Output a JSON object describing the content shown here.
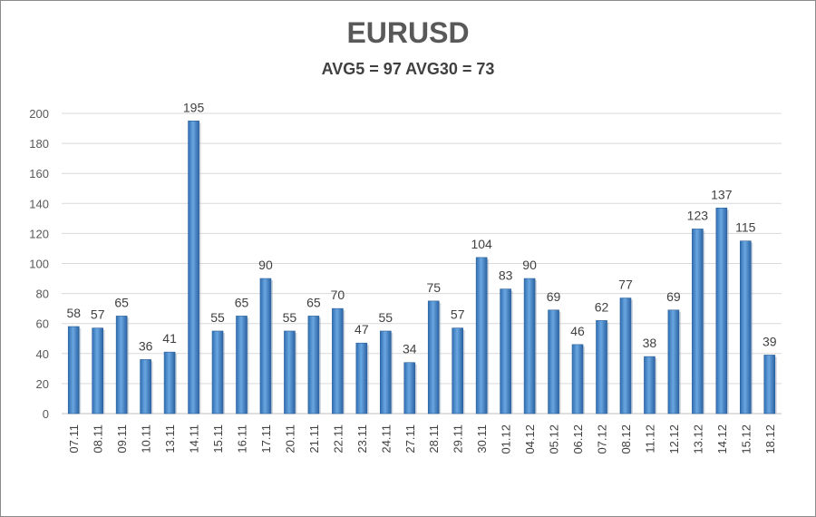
{
  "chart_data": {
    "type": "bar",
    "title": "EURUSD",
    "subtitle": "AVG5 = 97 AVG30 = 73",
    "categories": [
      "07.11",
      "08.11",
      "09.11",
      "10.11",
      "13.11",
      "14.11",
      "15.11",
      "16.11",
      "17.11",
      "20.11",
      "21.11",
      "22.11",
      "23.11",
      "24.11",
      "27.11",
      "28.11",
      "29.11",
      "30.11",
      "01.12",
      "04.12",
      "05.12",
      "06.12",
      "07.12",
      "08.12",
      "11.12",
      "12.12",
      "13.12",
      "14.12",
      "15.12",
      "18.12"
    ],
    "values": [
      58,
      57,
      65,
      36,
      41,
      195,
      55,
      65,
      90,
      55,
      65,
      70,
      47,
      55,
      34,
      75,
      57,
      104,
      83,
      90,
      69,
      46,
      62,
      77,
      38,
      69,
      123,
      137,
      115,
      39
    ],
    "ylim": [
      0,
      200
    ],
    "yticks": [
      0,
      20,
      40,
      60,
      80,
      100,
      120,
      140,
      160,
      180,
      200
    ],
    "grid": true,
    "bar_color": "#4f8fd0"
  }
}
